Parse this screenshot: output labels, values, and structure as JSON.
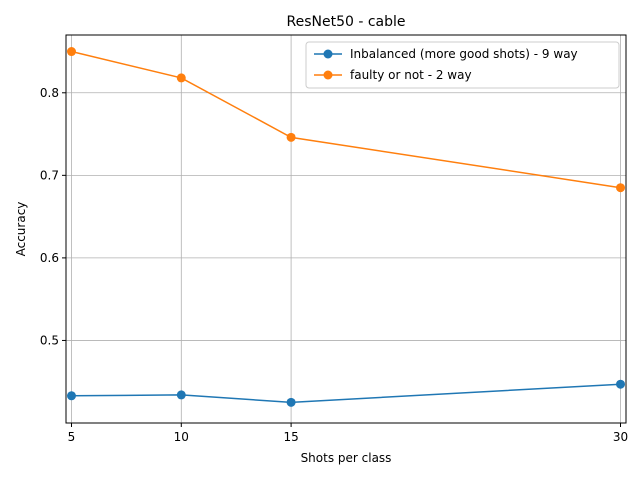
{
  "chart_data": {
    "type": "line",
    "title": "ResNet50 - cable",
    "xlabel": "Shots per class",
    "ylabel": "Accuracy",
    "x": [
      5,
      10,
      15,
      30
    ],
    "x_ticks": [
      5,
      10,
      15,
      30
    ],
    "y_ticks": [
      0.5,
      0.6,
      0.7,
      0.8
    ],
    "xlim": [
      4.75,
      30.25
    ],
    "ylim": [
      0.4,
      0.87
    ],
    "grid": true,
    "legend_position": "top-right",
    "series": [
      {
        "name": "Inbalanced (more good shots) - 9 way",
        "color": "#1f77b4",
        "values": [
          0.433,
          0.434,
          0.425,
          0.447
        ]
      },
      {
        "name": "faulty or not - 2 way",
        "color": "#ff7f0e",
        "values": [
          0.85,
          0.818,
          0.746,
          0.685
        ]
      }
    ]
  }
}
